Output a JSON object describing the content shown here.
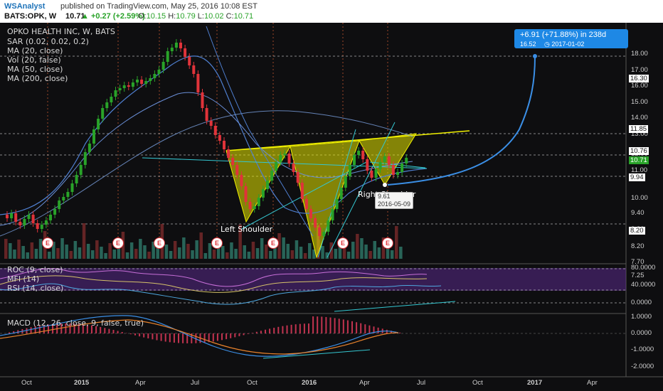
{
  "header": {
    "author": "WSAnalyst",
    "published": "published on TradingView.com, May 25, 2016 10:08 EST",
    "symbol": "BATS:OPK, W",
    "last": "10.71",
    "change": "▲ +0.27 (+2.59%)",
    "ohlc": {
      "o": "10.15",
      "h": "10.79",
      "l": "10.02",
      "c": "10.71"
    }
  },
  "legend": {
    "title": "OPKO HEALTH INC, W, BATS",
    "indicators": [
      "SAR (0.02, 0.02, 0.2)",
      "MA (20, close)",
      "Vol (20, false)",
      "MA (50, close)",
      "MA (200, close)"
    ]
  },
  "sub_legends": {
    "roc": "ROC (9, close)",
    "mfi": "MFI (14)",
    "rsi": "RSI (14, close)",
    "macd": "MACD (12, 26, close, 9, false, true)"
  },
  "annotations": {
    "left_shoulder": "Left Shoulder",
    "right_shoulder": "Right Shoulder",
    "earnings_marker": "E",
    "low_value": "9.61",
    "low_date": "2016-05-09"
  },
  "projection": {
    "line1": "+6.91 (+71.88%) in 238d",
    "price": "16.52",
    "date": "◷ 2017-01-02"
  },
  "price_axis": [
    "18.00",
    "17.00",
    "16.00",
    "15.00",
    "14.00",
    "13.00",
    "12.00",
    "11.00",
    "10.00",
    "9.40",
    "8.80",
    "8.20",
    "7.70",
    "7.25"
  ],
  "price_badges": [
    "16.30",
    "11.85",
    "10.76",
    "10.71",
    "9.94",
    "8.20"
  ],
  "osc_axis": [
    "80.0000",
    "40.0000",
    "0.0000"
  ],
  "macd_axis": [
    "1.0000",
    "0.0000",
    "-1.0000",
    "-2.0000"
  ],
  "time_axis": [
    "Oct",
    "2015",
    "Apr",
    "Jul",
    "Oct",
    "2016",
    "Apr",
    "Jul",
    "Oct",
    "2017",
    "Apr"
  ],
  "colors": {
    "up": "#29a329",
    "down": "#e0333a",
    "pattern": "#e6e600",
    "ma": "#4f7fd0",
    "projection": "#3b8fe6",
    "background": "#0e0e10"
  }
}
